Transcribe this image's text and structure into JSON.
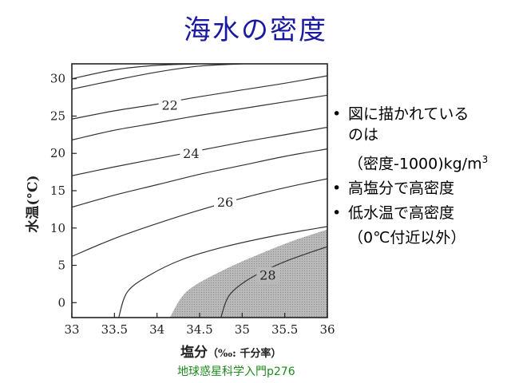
{
  "title": "海水の密度",
  "chart_data": {
    "type": "contour",
    "xlabel": "塩分",
    "xlabel_unit": "（‰: 千分率）",
    "ylabel": "水温(°C)",
    "xlim": [
      33,
      36
    ],
    "ylim": [
      -2,
      32
    ],
    "x_ticks": [
      "33",
      "33.5",
      "34",
      "34.5",
      "35",
      "35.5",
      "36"
    ],
    "y_ticks": [
      "0",
      "5",
      "10",
      "15",
      "20",
      "25",
      "30"
    ],
    "contour_labels": [
      {
        "value": "22",
        "x": 34.15,
        "y": 26.5
      },
      {
        "value": "24",
        "x": 34.4,
        "y": 20.0
      },
      {
        "value": "26",
        "x": 34.8,
        "y": 13.5
      },
      {
        "value": "28",
        "x": 35.3,
        "y": 3.7
      }
    ],
    "contours": [
      {
        "level": 21,
        "points": [
          [
            33.0,
            30.0
          ],
          [
            33.5,
            31.2
          ],
          [
            34.0,
            31.8
          ],
          [
            34.5,
            32.0
          ]
        ]
      },
      {
        "level": 21.5,
        "points": [
          [
            33.0,
            28.6
          ],
          [
            33.5,
            29.8
          ],
          [
            34.0,
            30.9
          ],
          [
            34.5,
            31.7
          ],
          [
            35.0,
            32.0
          ]
        ]
      },
      {
        "level": 22,
        "points": [
          [
            33.0,
            24.6
          ],
          [
            33.5,
            25.7
          ],
          [
            34.0,
            26.6
          ],
          [
            34.5,
            27.6
          ],
          [
            35.0,
            28.5
          ],
          [
            35.5,
            29.4
          ],
          [
            36.0,
            30.4
          ]
        ]
      },
      {
        "level": 23,
        "points": [
          [
            33.0,
            21.8
          ],
          [
            33.5,
            23.1
          ],
          [
            34.0,
            24.1
          ],
          [
            34.5,
            25.1
          ],
          [
            35.0,
            26.0
          ],
          [
            35.5,
            26.9
          ],
          [
            36.0,
            27.8
          ]
        ]
      },
      {
        "level": 24,
        "points": [
          [
            33.0,
            17.0
          ],
          [
            33.5,
            18.2
          ],
          [
            34.0,
            19.3
          ],
          [
            34.5,
            20.4
          ],
          [
            35.0,
            21.5
          ],
          [
            35.5,
            22.5
          ],
          [
            36.0,
            23.5
          ]
        ]
      },
      {
        "level": 25,
        "points": [
          [
            33.0,
            12.8
          ],
          [
            33.5,
            14.4
          ],
          [
            34.0,
            15.8
          ],
          [
            34.5,
            17.2
          ],
          [
            35.0,
            18.4
          ],
          [
            35.5,
            19.6
          ],
          [
            36.0,
            20.6
          ]
        ]
      },
      {
        "level": 26,
        "points": [
          [
            33.0,
            6.2
          ],
          [
            33.5,
            8.6
          ],
          [
            34.0,
            10.6
          ],
          [
            34.5,
            12.4
          ],
          [
            35.0,
            14.0
          ],
          [
            35.5,
            15.4
          ],
          [
            36.0,
            16.6
          ]
        ]
      },
      {
        "level": 27,
        "points": [
          [
            33.55,
            -2.0
          ],
          [
            33.65,
            1.4
          ],
          [
            33.9,
            3.6
          ],
          [
            34.3,
            5.8
          ],
          [
            34.8,
            7.5
          ],
          [
            35.4,
            9.0
          ],
          [
            36.0,
            10.2
          ]
        ]
      },
      {
        "level": 28,
        "points": [
          [
            34.75,
            -2.0
          ],
          [
            34.85,
            1.0
          ],
          [
            35.1,
            3.3
          ],
          [
            35.5,
            5.5
          ],
          [
            36.0,
            7.5
          ]
        ]
      }
    ],
    "shaded_region": {
      "boundary": [
        [
          34.15,
          -2.0
        ],
        [
          34.35,
          1.5
        ],
        [
          34.75,
          4.2
        ],
        [
          35.2,
          6.5
        ],
        [
          35.6,
          8.3
        ],
        [
          36.0,
          9.8
        ]
      ],
      "color": "#a8a8a8"
    },
    "grid": false
  },
  "bullets": [
    {
      "text": "図に描かれている"
    },
    {
      "text": "高塩分で高密度"
    },
    {
      "text": "低水温で高密度"
    }
  ],
  "bullet1_line2": "のは",
  "bullet1_sub_prefix": "（密度-1000)kg/m",
  "bullet1_sub_exp": "3",
  "bullet3_sub": "（0℃付近以外）",
  "bullet_symbol": "•",
  "source": "地球惑星科学入門p276",
  "colors": {
    "title": "#1a1aa0",
    "source": "#1e8a1e",
    "shade": "#a8a8a8"
  }
}
